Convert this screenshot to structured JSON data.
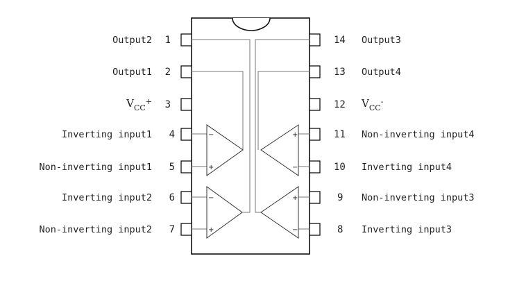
{
  "chip": {
    "left_pins": [
      {
        "num": "1",
        "label": "Output2"
      },
      {
        "num": "2",
        "label": "Output1"
      },
      {
        "num": "3",
        "label": "VCC+"
      },
      {
        "num": "4",
        "label": "Inverting input1"
      },
      {
        "num": "5",
        "label": "Non-inverting input1"
      },
      {
        "num": "6",
        "label": "Inverting input2"
      },
      {
        "num": "7",
        "label": "Non-inverting input2"
      }
    ],
    "right_pins": [
      {
        "num": "14",
        "label": "Output3"
      },
      {
        "num": "13",
        "label": "Output4"
      },
      {
        "num": "12",
        "label": "VCC-"
      },
      {
        "num": "11",
        "label": "Non-inverting input4"
      },
      {
        "num": "10",
        "label": "Inverting input4"
      },
      {
        "num": "9",
        "label": "Non-inverting input3"
      },
      {
        "num": "8",
        "label": "Inverting input3"
      }
    ],
    "vcc_pos": {
      "main": "V",
      "sub": "CC",
      "sup": "+"
    },
    "vcc_neg": {
      "main": "V",
      "sub": "CC",
      "sup": "-"
    },
    "amp_signs": {
      "plus": "+",
      "minus": "−"
    }
  }
}
